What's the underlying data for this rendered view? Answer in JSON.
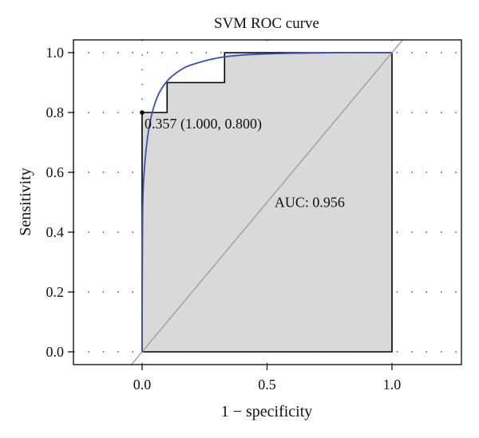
{
  "chart_data": {
    "type": "line",
    "title": "SVM ROC curve",
    "xlabel": "1 − specificity",
    "ylabel": "Sensitivity",
    "xlim": [
      -0.25,
      1.25
    ],
    "ylim": [
      -0.05,
      1.05
    ],
    "x_ticks": [
      "0.0",
      "0.5",
      "1.0"
    ],
    "x_tick_values": [
      0.0,
      0.5,
      1.0
    ],
    "y_ticks": [
      "0.0",
      "0.2",
      "0.4",
      "0.6",
      "0.8",
      "1.0"
    ],
    "y_tick_values": [
      0.0,
      0.2,
      0.4,
      0.6,
      0.8,
      1.0
    ],
    "grid": "dotted",
    "series": [
      {
        "kind": "empirical-step",
        "color": "#000000",
        "fill": "#d9d9d9",
        "x": [
          0.0,
          0.0,
          0.0,
          0.1,
          0.1,
          0.33,
          0.33,
          1.0
        ],
        "y": [
          0.0,
          0.8,
          0.8,
          0.8,
          0.9,
          0.9,
          1.0,
          1.0
        ]
      },
      {
        "kind": "smoothed",
        "color": "#3b4fb0",
        "x": [
          0.0,
          0.002,
          0.01,
          0.03,
          0.06,
          0.1,
          0.15,
          0.2,
          0.3,
          0.4,
          0.5,
          0.6,
          0.7,
          0.8,
          0.9,
          1.0
        ],
        "y": [
          0.0,
          0.45,
          0.62,
          0.76,
          0.85,
          0.905,
          0.94,
          0.96,
          0.982,
          0.992,
          0.996,
          0.998,
          0.999,
          1.0,
          1.0,
          1.0
        ]
      },
      {
        "kind": "diagonal",
        "color": "#a6a6a6",
        "x": [
          -0.05,
          1.05
        ],
        "y": [
          -0.05,
          1.05
        ]
      }
    ],
    "threshold_point": {
      "x": 0.0,
      "y": 0.8,
      "label": "0.357 (1.000, 0.800)"
    },
    "annotations": [
      {
        "text": "AUC: 0.956",
        "x": 0.53,
        "y": 0.5
      }
    ]
  }
}
